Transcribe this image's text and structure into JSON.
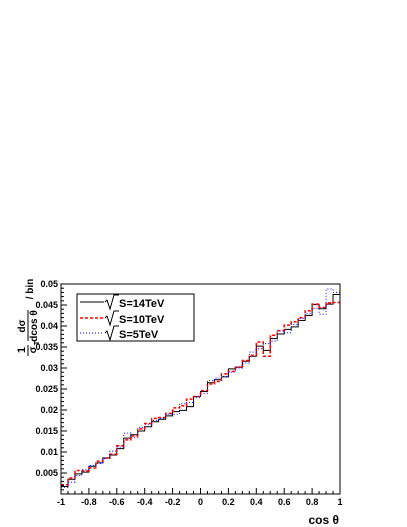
{
  "chart_data": {
    "type": "line",
    "step": true,
    "xlabel": "cos θ",
    "ylabel_top": "1",
    "ylabel_frac_num": "dσ",
    "ylabel_frac_den_sigma": "σ",
    "ylabel_frac_den_sub": "T",
    "ylabel_frac_den_rest": "dcos θ",
    "ylabel_suffix": "/ bin",
    "xlim": [
      -1,
      1
    ],
    "ylim": [
      0,
      0.05
    ],
    "x_ticks": [
      -1,
      -0.8,
      -0.6,
      -0.4,
      -0.2,
      0,
      0.2,
      0.4,
      0.6,
      0.8,
      1
    ],
    "x_tick_labels": [
      "-1",
      "-0.8",
      "-0.6",
      "-0.4",
      "-0.2",
      "0",
      "0.2",
      "0.4",
      "0.6",
      "0.8",
      "1"
    ],
    "y_ticks": [
      0.005,
      0.01,
      0.015,
      0.02,
      0.025,
      0.03,
      0.035,
      0.04,
      0.045,
      0.05
    ],
    "y_tick_labels": [
      "0.005",
      "0.01",
      "0.015",
      "0.02",
      "0.025",
      "0.03",
      "0.035",
      "0.04",
      "0.045",
      "0.05"
    ],
    "bin_edges": [
      -1,
      -0.95,
      -0.9,
      -0.85,
      -0.8,
      -0.75,
      -0.7,
      -0.65,
      -0.6,
      -0.55,
      -0.5,
      -0.45,
      -0.4,
      -0.35,
      -0.3,
      -0.25,
      -0.2,
      -0.15,
      -0.1,
      -0.05,
      0,
      0.05,
      0.1,
      0.15,
      0.2,
      0.25,
      0.3,
      0.35,
      0.4,
      0.45,
      0.5,
      0.55,
      0.6,
      0.65,
      0.7,
      0.75,
      0.8,
      0.85,
      0.9,
      0.95,
      1
    ],
    "legend_position": "top-left",
    "series": [
      {
        "name": "S=14TeV",
        "color": "#000000",
        "dash": "none",
        "values": [
          0.0018,
          0.0035,
          0.0048,
          0.0052,
          0.0066,
          0.0074,
          0.0086,
          0.0093,
          0.0108,
          0.0133,
          0.0141,
          0.015,
          0.016,
          0.0172,
          0.0178,
          0.0186,
          0.0196,
          0.0199,
          0.0208,
          0.0232,
          0.0244,
          0.0265,
          0.0272,
          0.0279,
          0.0298,
          0.0302,
          0.0316,
          0.0328,
          0.0352,
          0.0342,
          0.037,
          0.0381,
          0.0392,
          0.0398,
          0.0413,
          0.0425,
          0.0451,
          0.0441,
          0.0452,
          0.0475
        ]
      },
      {
        "name": "S=10TeV",
        "color": "#ff0000",
        "dash": "3,2",
        "values": [
          0.0022,
          0.0038,
          0.0056,
          0.0055,
          0.0062,
          0.0078,
          0.0085,
          0.0095,
          0.0115,
          0.0129,
          0.0138,
          0.0155,
          0.0168,
          0.018,
          0.0182,
          0.0192,
          0.0205,
          0.021,
          0.0226,
          0.0232,
          0.0246,
          0.0262,
          0.0268,
          0.0286,
          0.0292,
          0.0302,
          0.0318,
          0.033,
          0.0362,
          0.0328,
          0.0378,
          0.0389,
          0.0402,
          0.041,
          0.042,
          0.0436,
          0.0452,
          0.0444,
          0.0455,
          0.0456
        ]
      },
      {
        "name": "S=5TeV",
        "color": "#0000ff",
        "dash": "1,2",
        "values": [
          0.0016,
          0.0028,
          0.0044,
          0.0058,
          0.0068,
          0.0073,
          0.0085,
          0.0102,
          0.0112,
          0.0145,
          0.0134,
          0.0158,
          0.0166,
          0.0175,
          0.018,
          0.019,
          0.019,
          0.0215,
          0.0218,
          0.023,
          0.024,
          0.027,
          0.0276,
          0.028,
          0.029,
          0.03,
          0.0312,
          0.0338,
          0.0346,
          0.0358,
          0.0364,
          0.0388,
          0.0384,
          0.0404,
          0.0418,
          0.043,
          0.0442,
          0.0428,
          0.0488,
          0.048
        ]
      }
    ]
  }
}
